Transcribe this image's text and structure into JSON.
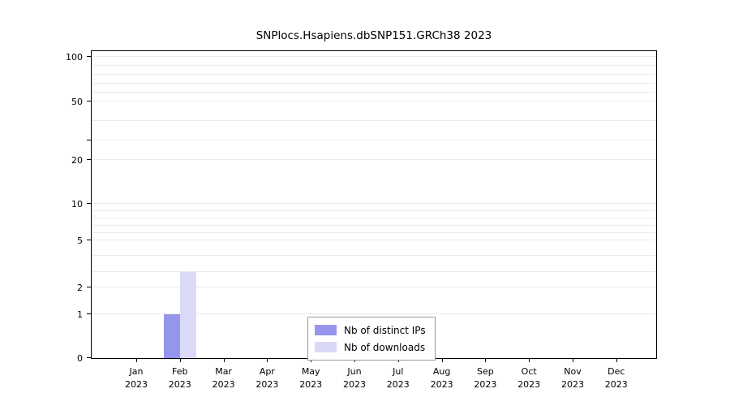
{
  "chart_data": {
    "type": "bar",
    "title": "SNPlocs.Hsapiens.dbSNP151.GRCh38 2023",
    "categories": [
      {
        "month": "Jan",
        "year": "2023"
      },
      {
        "month": "Feb",
        "year": "2023"
      },
      {
        "month": "Mar",
        "year": "2023"
      },
      {
        "month": "Apr",
        "year": "2023"
      },
      {
        "month": "May",
        "year": "2023"
      },
      {
        "month": "Jun",
        "year": "2023"
      },
      {
        "month": "Jul",
        "year": "2023"
      },
      {
        "month": "Aug",
        "year": "2023"
      },
      {
        "month": "Sep",
        "year": "2023"
      },
      {
        "month": "Oct",
        "year": "2023"
      },
      {
        "month": "Nov",
        "year": "2023"
      },
      {
        "month": "Dec",
        "year": "2023"
      }
    ],
    "series": [
      {
        "name": "Nb of distinct IPs",
        "color": "#9595ec",
        "values": [
          0,
          1,
          0,
          0,
          0,
          0,
          0,
          0,
          0,
          0,
          0,
          0
        ]
      },
      {
        "name": "Nb of downloads",
        "color": "#dadaf8",
        "values": [
          0,
          3,
          0,
          0,
          0,
          0,
          0,
          0,
          0,
          0,
          0,
          0
        ]
      }
    ],
    "y_axis": {
      "scale": "log-like",
      "range": [
        0,
        100
      ],
      "ticks": [
        {
          "label": "100",
          "value": 100
        },
        {
          "label": "50",
          "value": 50
        },
        {
          "label": "",
          "value": 30
        },
        {
          "label": "20",
          "value": 20
        },
        {
          "label": "10",
          "value": 10
        },
        {
          "label": "5",
          "value": 5
        },
        {
          "label": "2",
          "value": 2
        },
        {
          "label": "1",
          "value": 1
        },
        {
          "label": "0",
          "value": 0
        }
      ]
    },
    "gridline_values": [
      1,
      2,
      3,
      4,
      5,
      6,
      7,
      8,
      9,
      10,
      20,
      30,
      40,
      50,
      60,
      70,
      80,
      90,
      100
    ],
    "legend": {
      "position": "bottom-center-inside",
      "items": [
        "Nb of distinct IPs",
        "Nb of downloads"
      ]
    },
    "xlabel": "",
    "ylabel": ""
  }
}
